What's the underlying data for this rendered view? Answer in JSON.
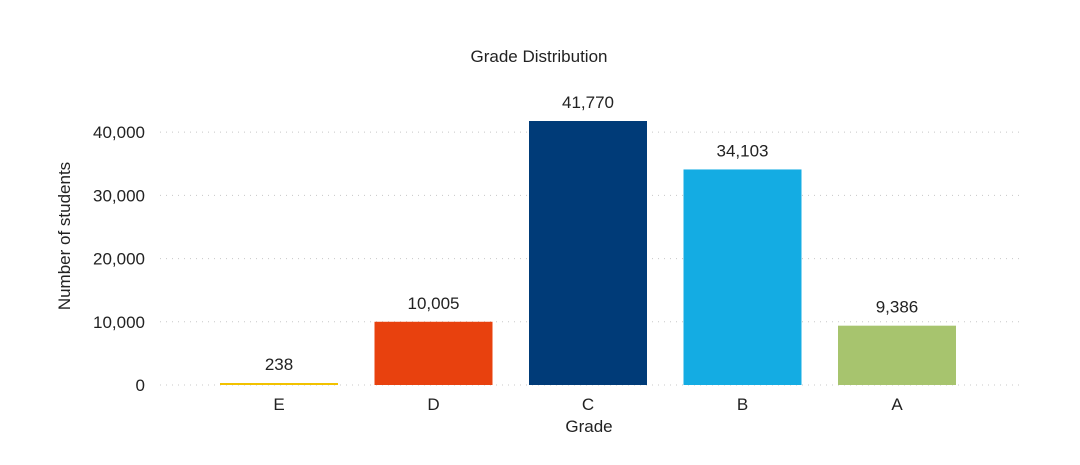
{
  "chart_data": {
    "type": "bar",
    "title": "Grade Distribution",
    "xlabel": "Grade",
    "ylabel": "Number of students",
    "categories": [
      "E",
      "D",
      "C",
      "B",
      "A"
    ],
    "values": [
      238,
      10005,
      41770,
      34103,
      9386
    ],
    "data_labels": [
      "238",
      "10,005",
      "41,770",
      "34,103",
      "9,386"
    ],
    "colors": [
      "#f2c200",
      "#e8410e",
      "#003b78",
      "#14ace3",
      "#a7c46e"
    ],
    "ylim": [
      0,
      41770
    ],
    "yticks": [
      0,
      10000,
      20000,
      30000,
      40000
    ],
    "ytick_labels": [
      "0",
      "10,000",
      "20,000",
      "30,000",
      "40,000"
    ],
    "grid": true,
    "legend": "none"
  }
}
